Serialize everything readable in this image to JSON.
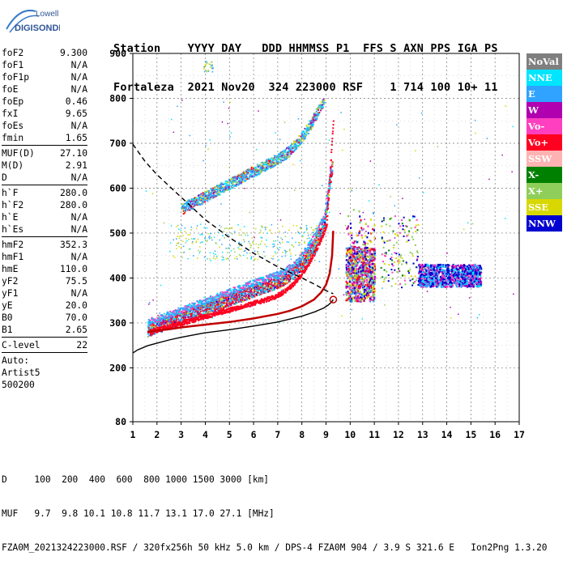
{
  "logo": {
    "line1": "Lowell",
    "line2": "DIGISONDE"
  },
  "header": {
    "line1": "Station    YYYY DAY   DDD HHMMSS P1  FFS S AXN PPS IGA PS",
    "line2": "Fortaleza  2021 Nov20  324 223000 RSF    1 714 100 10+ 11"
  },
  "params": [
    {
      "label": "foF2",
      "value": "9.300"
    },
    {
      "label": "foF1",
      "value": "N/A"
    },
    {
      "label": "foF1p",
      "value": "N/A"
    },
    {
      "label": "foE",
      "value": "N/A"
    },
    {
      "label": "foEp",
      "value": "0.46"
    },
    {
      "label": "fxI",
      "value": "9.65"
    },
    {
      "label": "foEs",
      "value": "N/A"
    },
    {
      "label": "fmin",
      "value": "1.65"
    },
    {
      "sep": true
    },
    {
      "label": "MUF(D)",
      "value": "27.10"
    },
    {
      "label": "M(D)",
      "value": "2.91"
    },
    {
      "label": "D",
      "value": "N/A"
    },
    {
      "sep": true
    },
    {
      "label": "h`F",
      "value": "280.0"
    },
    {
      "label": "h`F2",
      "value": "280.0"
    },
    {
      "label": "h`E",
      "value": "N/A"
    },
    {
      "label": "h`Es",
      "value": "N/A"
    },
    {
      "sep": true
    },
    {
      "label": "hmF2",
      "value": "352.3"
    },
    {
      "label": "hmF1",
      "value": "N/A"
    },
    {
      "label": "hmE",
      "value": "110.0"
    },
    {
      "label": "yF2",
      "value": "75.5"
    },
    {
      "label": "yF1",
      "value": "N/A"
    },
    {
      "label": "yE",
      "value": "20.0"
    },
    {
      "label": "B0",
      "value": "70.0"
    },
    {
      "label": "B1",
      "value": "2.65"
    },
    {
      "sep": true
    },
    {
      "label": "C-level",
      "value": "22"
    },
    {
      "sep": true
    }
  ],
  "autoscale": {
    "line1": "Auto:",
    "line2": "Artist5",
    "line3": "500200"
  },
  "legend": [
    {
      "label": "NoVal",
      "color": "#7f7f7f"
    },
    {
      "label": "NNE",
      "color": "#00e5ff"
    },
    {
      "label": "E",
      "color": "#2fa3ff"
    },
    {
      "label": "W",
      "color": "#b000b0"
    },
    {
      "label": "Vo-",
      "color": "#ff3fbf"
    },
    {
      "label": "Vo+",
      "color": "#ff0020"
    },
    {
      "label": "SSW",
      "color": "#ffb2b2"
    },
    {
      "label": "X-",
      "color": "#008000"
    },
    {
      "label": "X+",
      "color": "#8fce5a"
    },
    {
      "label": "SSE",
      "color": "#d8d800"
    },
    {
      "label": "NNW",
      "color": "#0000d0"
    }
  ],
  "footer": {
    "line1": "D     100  200  400  600  800 1000 1500 3000 [km]",
    "line2": "MUF   9.7  9.8 10.1 10.8 11.7 13.1 17.0 27.1 [MHz]",
    "line3": "FZA0M_2021324223000.RSF / 320fx256h 50 kHz 5.0 km / DPS-4 FZA0M 904 / 3.9 S 321.6 E   Ion2Png 1.3.20"
  },
  "chart_data": {
    "type": "scatter",
    "xlim": [
      1,
      17
    ],
    "ylim": [
      80,
      900
    ],
    "x_ticks": [
      "1",
      "2",
      "3",
      "4",
      "5",
      "6",
      "7",
      "8",
      "9",
      "10",
      "11",
      "12",
      "13",
      "14",
      "15",
      "16",
      "17"
    ],
    "y_ticks": [
      "80",
      "200",
      "300",
      "400",
      "500",
      "600",
      "700",
      "800",
      "900"
    ],
    "grid": true,
    "series": [
      {
        "type": "curve",
        "style": "solid",
        "color": "#000000",
        "x": [
          1.0,
          1.2,
          1.6,
          2.0,
          2.5,
          3.0,
          4.0,
          5.0,
          6.0,
          7.0,
          8.0,
          8.5,
          8.9,
          9.1,
          9.25,
          9.3
        ],
        "y": [
          233,
          240,
          249,
          255,
          262,
          268,
          278,
          285,
          293,
          302,
          315,
          324,
          333,
          340,
          348,
          352
        ]
      },
      {
        "type": "curve",
        "style": "solid",
        "color": "#c00000",
        "x": [
          1.6,
          2.0,
          2.5,
          3.0,
          3.5,
          4.0,
          5.0,
          6.0,
          7.0,
          7.5,
          8.0,
          8.5,
          8.8,
          9.0,
          9.15,
          9.25,
          9.3
        ],
        "y": [
          280,
          283,
          286,
          290,
          293,
          296,
          302,
          310,
          320,
          327,
          337,
          352,
          368,
          385,
          410,
          450,
          505
        ]
      },
      {
        "type": "curve",
        "style": "dashed",
        "color": "#000000",
        "x": [
          1.0,
          1.5,
          2.0,
          3.0,
          4.0,
          5.0,
          6.0,
          7.0,
          8.0,
          8.5,
          9.0,
          9.3
        ],
        "y": [
          698,
          660,
          630,
          580,
          530,
          490,
          455,
          425,
          400,
          387,
          372,
          365
        ]
      }
    ]
  }
}
